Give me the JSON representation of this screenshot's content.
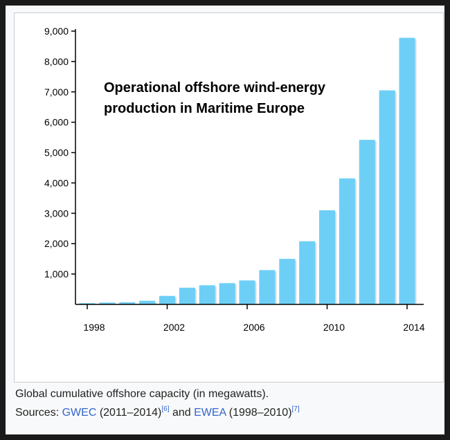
{
  "chart_data": {
    "type": "bar",
    "title": "Operational offshore wind-energy production in Maritime Europe",
    "xlabel": "",
    "ylabel": "",
    "x": [
      1998,
      1999,
      2000,
      2001,
      2002,
      2003,
      2004,
      2005,
      2006,
      2007,
      2008,
      2009,
      2010,
      2011,
      2012,
      2013,
      2014
    ],
    "values": [
      40,
      60,
      70,
      120,
      280,
      550,
      630,
      700,
      790,
      1130,
      1500,
      2080,
      3100,
      4150,
      5420,
      7050,
      8780
    ],
    "ylim": [
      0,
      9000
    ],
    "yticks": [
      1000,
      2000,
      3000,
      4000,
      5000,
      6000,
      7000,
      8000,
      9000
    ],
    "ytick_labels": [
      "1,000",
      "2,000",
      "3,000",
      "4,000",
      "5,000",
      "6,000",
      "7,000",
      "8,000",
      "9,000"
    ],
    "xticks": [
      1998,
      2002,
      2006,
      2010,
      2014
    ],
    "bar_color": "#6ecff6",
    "grid": false
  },
  "caption": {
    "line1": "Global cumulative offshore capacity (in megawatts).",
    "sources_prefix": "Sources: ",
    "gwec": "GWEC",
    "gwec_range": " (2011–2014)",
    "ref1": "[6]",
    "and": " and ",
    "ewea": "EWEA",
    "ewea_range": " (1998–2010)",
    "ref2": "[7]"
  },
  "link_color": "#3366cc"
}
